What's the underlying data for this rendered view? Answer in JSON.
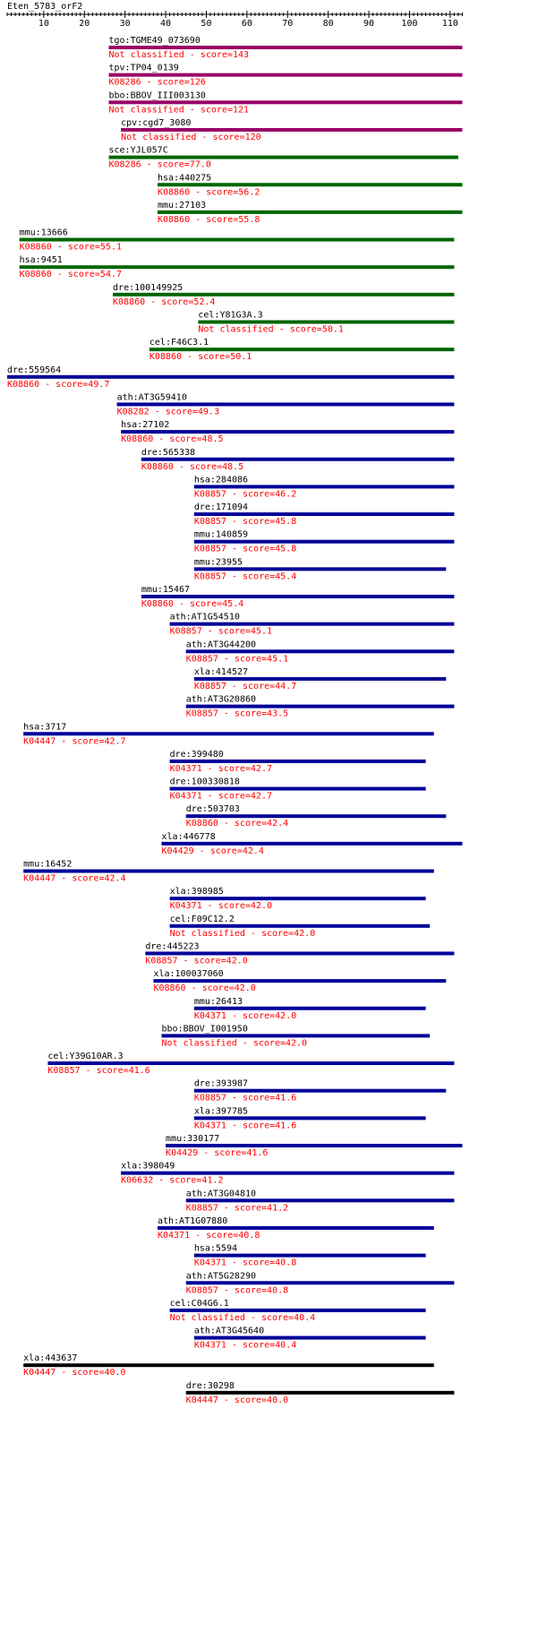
{
  "query": {
    "name": "Eten_5783_orF2",
    "axis_ticks": [
      10,
      20,
      30,
      40,
      50,
      60,
      70,
      80,
      90,
      100,
      110
    ],
    "axis_range": [
      1,
      113
    ]
  },
  "colors": {
    "purple": "#990066",
    "green": "#006600",
    "blue": "#000099",
    "black": "#000000",
    "label_red": "#ff0000",
    "label_black": "#000000"
  },
  "hits": [
    {
      "name": "tgo:TGME49_073690",
      "annotation": "Not classified - score=143",
      "start": 26,
      "end": 113,
      "color": "purple"
    },
    {
      "name": "tpv:TP04_0139",
      "annotation": "K08286 - score=126",
      "start": 26,
      "end": 113,
      "color": "purple"
    },
    {
      "name": "bbo:BBOV_III003130",
      "annotation": "Not classified - score=121",
      "start": 26,
      "end": 113,
      "color": "purple"
    },
    {
      "name": "cpv:cgd7_3080",
      "annotation": "Not classified - score=120",
      "start": 29,
      "end": 113,
      "color": "purple"
    },
    {
      "name": "sce:YJL057C",
      "annotation": "K08286 - score=77.0",
      "start": 26,
      "end": 112,
      "color": "green"
    },
    {
      "name": "hsa:440275",
      "annotation": "K08860 - score=56.2",
      "start": 38,
      "end": 113,
      "color": "green"
    },
    {
      "name": "mmu:27103",
      "annotation": "K08860 - score=55.8",
      "start": 38,
      "end": 113,
      "color": "green"
    },
    {
      "name": "mmu:13666",
      "annotation": "K08860 - score=55.1",
      "start": 4,
      "end": 111,
      "color": "green"
    },
    {
      "name": "hsa:9451",
      "annotation": "K08860 - score=54.7",
      "start": 4,
      "end": 111,
      "color": "green"
    },
    {
      "name": "dre:100149925",
      "annotation": "K08860 - score=52.4",
      "start": 27,
      "end": 111,
      "color": "green"
    },
    {
      "name": "cel:Y81G3A.3",
      "annotation": "Not classified - score=50.1",
      "start": 48,
      "end": 111,
      "color": "green"
    },
    {
      "name": "cel:F46C3.1",
      "annotation": "K08860 - score=50.1",
      "start": 36,
      "end": 111,
      "color": "green"
    },
    {
      "name": "dre:559564",
      "annotation": "K08860 - score=49.7",
      "start": 1,
      "end": 111,
      "color": "blue"
    },
    {
      "name": "ath:AT3G59410",
      "annotation": "K08282 - score=49.3",
      "start": 28,
      "end": 111,
      "color": "blue"
    },
    {
      "name": "hsa:27102",
      "annotation": "K08860 - score=48.5",
      "start": 29,
      "end": 111,
      "color": "blue"
    },
    {
      "name": "dre:565338",
      "annotation": "K08860 - score=48.5",
      "start": 34,
      "end": 111,
      "color": "blue"
    },
    {
      "name": "hsa:284086",
      "annotation": "K08857 - score=46.2",
      "start": 47,
      "end": 111,
      "color": "blue"
    },
    {
      "name": "dre:171094",
      "annotation": "K08857 - score=45.8",
      "start": 47,
      "end": 111,
      "color": "blue"
    },
    {
      "name": "mmu:140859",
      "annotation": "K08857 - score=45.8",
      "start": 47,
      "end": 111,
      "color": "blue"
    },
    {
      "name": "mmu:23955",
      "annotation": "K08857 - score=45.4",
      "start": 47,
      "end": 109,
      "color": "blue"
    },
    {
      "name": "mmu:15467",
      "annotation": "K08860 - score=45.4",
      "start": 34,
      "end": 111,
      "color": "blue"
    },
    {
      "name": "ath:AT1G54510",
      "annotation": "K08857 - score=45.1",
      "start": 41,
      "end": 111,
      "color": "blue"
    },
    {
      "name": "ath:AT3G44200",
      "annotation": "K08857 - score=45.1",
      "start": 45,
      "end": 111,
      "color": "blue"
    },
    {
      "name": "xla:414527",
      "annotation": "K08857 - score=44.7",
      "start": 47,
      "end": 109,
      "color": "blue"
    },
    {
      "name": "ath:AT3G20860",
      "annotation": "K08857 - score=43.5",
      "start": 45,
      "end": 111,
      "color": "blue"
    },
    {
      "name": "hsa:3717",
      "annotation": "K04447 - score=42.7",
      "start": 5,
      "end": 106,
      "color": "blue"
    },
    {
      "name": "dre:399480",
      "annotation": "K04371 - score=42.7",
      "start": 41,
      "end": 104,
      "color": "blue"
    },
    {
      "name": "dre:100330818",
      "annotation": "K04371 - score=42.7",
      "start": 41,
      "end": 104,
      "color": "blue"
    },
    {
      "name": "dre:503703",
      "annotation": "K08860 - score=42.4",
      "start": 45,
      "end": 109,
      "color": "blue"
    },
    {
      "name": "xla:446778",
      "annotation": "K04429 - score=42.4",
      "start": 39,
      "end": 113,
      "color": "blue"
    },
    {
      "name": "mmu:16452",
      "annotation": "K04447 - score=42.4",
      "start": 5,
      "end": 106,
      "color": "blue"
    },
    {
      "name": "xla:398985",
      "annotation": "K04371 - score=42.0",
      "start": 41,
      "end": 104,
      "color": "blue"
    },
    {
      "name": "cel:F09C12.2",
      "annotation": "Not classified - score=42.0",
      "start": 41,
      "end": 105,
      "color": "blue"
    },
    {
      "name": "dre:445223",
      "annotation": "K08857 - score=42.0",
      "start": 35,
      "end": 111,
      "color": "blue"
    },
    {
      "name": "xla:100037060",
      "annotation": "K08860 - score=42.0",
      "start": 37,
      "end": 109,
      "color": "blue"
    },
    {
      "name": "mmu:26413",
      "annotation": "K04371 - score=42.0",
      "start": 47,
      "end": 104,
      "color": "blue"
    },
    {
      "name": "bbo:BBOV_I001950",
      "annotation": "Not classified - score=42.0",
      "start": 39,
      "end": 105,
      "color": "blue"
    },
    {
      "name": "cel:Y39G10AR.3",
      "annotation": "K08857 - score=41.6",
      "start": 11,
      "end": 111,
      "color": "blue"
    },
    {
      "name": "dre:393987",
      "annotation": "K08857 - score=41.6",
      "start": 47,
      "end": 109,
      "color": "blue"
    },
    {
      "name": "xla:397785",
      "annotation": "K04371 - score=41.6",
      "start": 47,
      "end": 104,
      "color": "blue"
    },
    {
      "name": "mmu:330177",
      "annotation": "K04429 - score=41.6",
      "start": 40,
      "end": 113,
      "color": "blue"
    },
    {
      "name": "xla:398049",
      "annotation": "K06632 - score=41.2",
      "start": 29,
      "end": 111,
      "color": "blue"
    },
    {
      "name": "ath:AT3G04810",
      "annotation": "K08857 - score=41.2",
      "start": 45,
      "end": 111,
      "color": "blue"
    },
    {
      "name": "ath:AT1G07880",
      "annotation": "K04371 - score=40.8",
      "start": 38,
      "end": 106,
      "color": "blue"
    },
    {
      "name": "hsa:5594",
      "annotation": "K04371 - score=40.8",
      "start": 47,
      "end": 104,
      "color": "blue"
    },
    {
      "name": "ath:AT5G28290",
      "annotation": "K08857 - score=40.8",
      "start": 45,
      "end": 111,
      "color": "blue"
    },
    {
      "name": "cel:C04G6.1",
      "annotation": "Not classified - score=40.4",
      "start": 41,
      "end": 104,
      "color": "blue"
    },
    {
      "name": "ath:AT3G45640",
      "annotation": "K04371 - score=40.4",
      "start": 47,
      "end": 104,
      "color": "blue"
    },
    {
      "name": "xla:443637",
      "annotation": "K04447 - score=40.0",
      "start": 5,
      "end": 106,
      "color": "black"
    },
    {
      "name": "dre:30298",
      "annotation": "K04447 - score=40.0",
      "start": 45,
      "end": 111,
      "color": "black"
    }
  ]
}
